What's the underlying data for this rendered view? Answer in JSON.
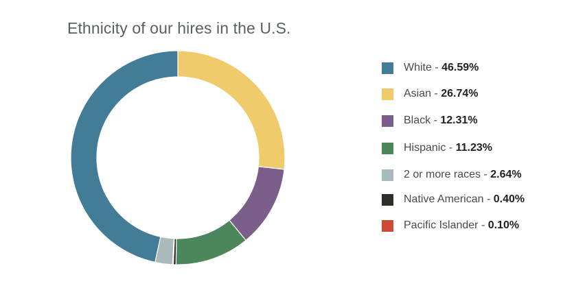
{
  "chart_data": {
    "type": "pie",
    "title": "Ethnicity of our hires in the U.S.",
    "legend_position": "right",
    "series": [
      {
        "name": "White",
        "value": 46.59,
        "value_label": "46.59%",
        "color": "#437c97"
      },
      {
        "name": "Asian",
        "value": 26.74,
        "value_label": "26.74%",
        "color": "#efcb6c"
      },
      {
        "name": "Black",
        "value": 12.31,
        "value_label": "12.31%",
        "color": "#7b5f8a"
      },
      {
        "name": "Hispanic",
        "value": 11.23,
        "value_label": "11.23%",
        "color": "#4c865b"
      },
      {
        "name": "2 or more races",
        "value": 2.64,
        "value_label": "2.64%",
        "color": "#a9babb"
      },
      {
        "name": "Native American",
        "value": 0.4,
        "value_label": "0.40%",
        "color": "#2f2c29"
      },
      {
        "name": "Pacific Islander",
        "value": 0.1,
        "value_label": "0.10%",
        "color": "#cd4a35"
      }
    ],
    "donut_order": [
      "Asian",
      "Black",
      "Hispanic",
      "Native American",
      "Pacific Islander",
      "2 or more races",
      "White"
    ]
  }
}
